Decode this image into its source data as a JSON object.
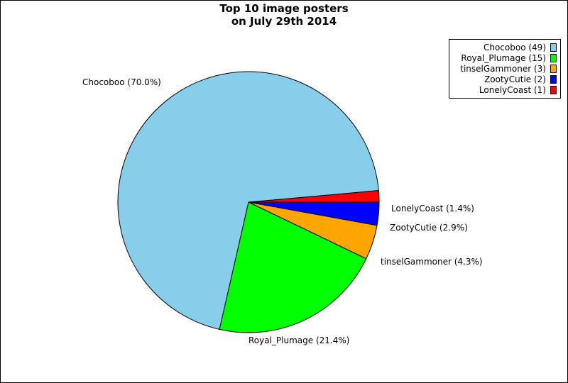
{
  "chart_data": {
    "type": "pie",
    "title": [
      "Top 10 image posters",
      "on July 29th 2014"
    ],
    "slices": [
      {
        "name": "Chocoboo",
        "value": 49,
        "legend": "Chocoboo (49)",
        "label": "Chocoboo (70.0%)",
        "color": "#87ceeb"
      },
      {
        "name": "Royal_Plumage",
        "value": 15,
        "legend": "Royal_Plumage (15)",
        "label": "Royal_Plumage (21.4%)",
        "color": "#00ff00"
      },
      {
        "name": "tinselGammoner",
        "value": 3,
        "legend": "tinselGammoner (3)",
        "label": "tinselGammoner (4.3%)",
        "color": "#ffa500"
      },
      {
        "name": "ZootyCutie",
        "value": 2,
        "legend": "ZootyCutie (2)",
        "label": "ZootyCutie (2.9%)",
        "color": "#0000ff"
      },
      {
        "name": "LonelyCoast",
        "value": 1,
        "legend": "LonelyCoast (1)",
        "label": "LonelyCoast (1.4%)",
        "color": "#ff0000"
      }
    ],
    "legend_position": "top-right"
  }
}
